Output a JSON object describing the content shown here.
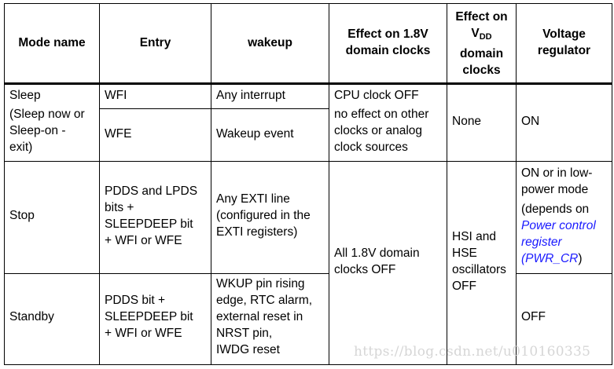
{
  "table": {
    "headers": {
      "mode": "Mode name",
      "entry": "Entry",
      "wakeup": "wakeup",
      "effect_18v": [
        "Effect on 1.8V",
        "domain clocks"
      ],
      "effect_vdd": {
        "line1": "Effect on",
        "v": "V",
        "sub": "DD",
        "line3": "domain",
        "line4": "clocks"
      },
      "regulator": [
        "Voltage",
        "regulator"
      ]
    },
    "sleep": {
      "mode": [
        "Sleep",
        "(Sleep now or",
        "Sleep-on -",
        "exit)"
      ],
      "entry_wfi": "WFI",
      "entry_wfe": "WFE",
      "wakeup_wfi": "Any interrupt",
      "wakeup_wfe": "Wakeup event",
      "effect_18v": [
        "CPU clock OFF",
        "no effect on other",
        "clocks or analog",
        "clock sources"
      ],
      "effect_vdd": "None",
      "regulator": "ON"
    },
    "stop": {
      "mode": "Stop",
      "entry": [
        "PDDS and LPDS",
        "bits +",
        "SLEEPDEEP bit",
        "+ WFI or WFE"
      ],
      "wakeup": [
        "Any EXTI line",
        "(configured in the",
        "EXTI registers)"
      ],
      "regulator": [
        "ON or in low-",
        "power mode",
        "(depends on"
      ],
      "regulator_link": [
        "Power control",
        "register",
        "(PWR_CR"
      ],
      "regulator_close": ")"
    },
    "stop_standby_shared": {
      "effect_18v": [
        "All 1.8V domain",
        "clocks OFF"
      ],
      "effect_vdd": [
        "HSI and",
        "HSE",
        "oscillators",
        "OFF"
      ]
    },
    "standby": {
      "mode": "Standby",
      "entry": [
        "PDDS bit +",
        "SLEEPDEEP bit",
        "+ WFI or WFE"
      ],
      "wakeup": [
        "WKUP pin rising",
        "edge, RTC alarm,",
        "external reset in",
        "NRST pin,",
        "IWDG reset"
      ],
      "regulator": "OFF"
    }
  },
  "watermark": "https://blog.csdn.net/u010160335",
  "colors": {
    "link": "#1a1aff",
    "watermark": "#d6d6d6"
  }
}
